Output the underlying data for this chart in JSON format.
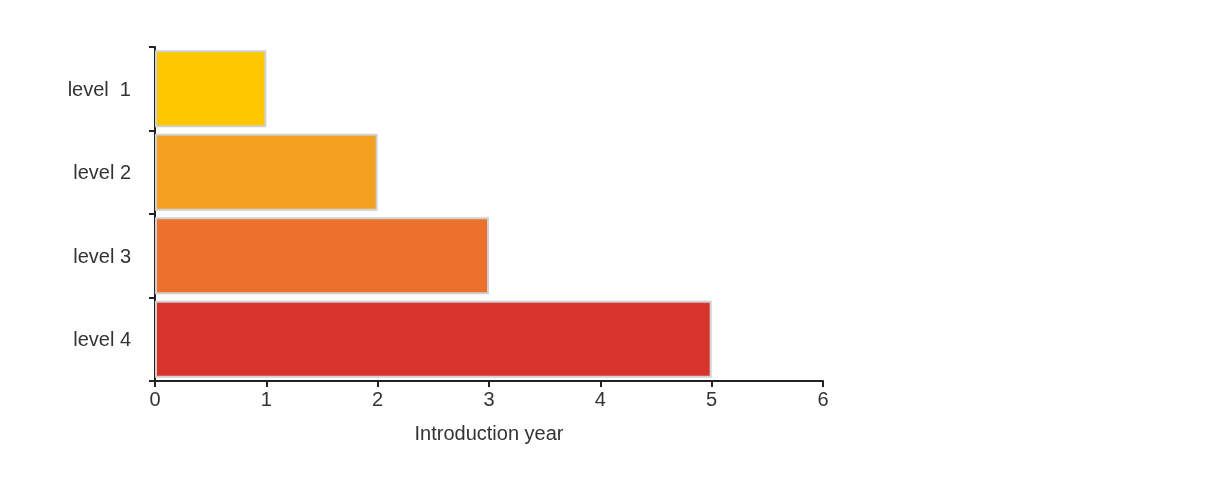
{
  "chart_data": {
    "type": "bar",
    "orientation": "horizontal",
    "xlabel": "Introduction year",
    "categories": [
      "level  1",
      "level 2",
      "level 3",
      "level 4"
    ],
    "values": [
      1,
      2,
      3,
      5
    ],
    "colors": [
      "#fdc800",
      "#f4a020",
      "#eb712d",
      "#d9332e"
    ],
    "xlim": [
      0,
      6
    ],
    "xticks": [
      0,
      1,
      2,
      3,
      4,
      5,
      6
    ]
  }
}
